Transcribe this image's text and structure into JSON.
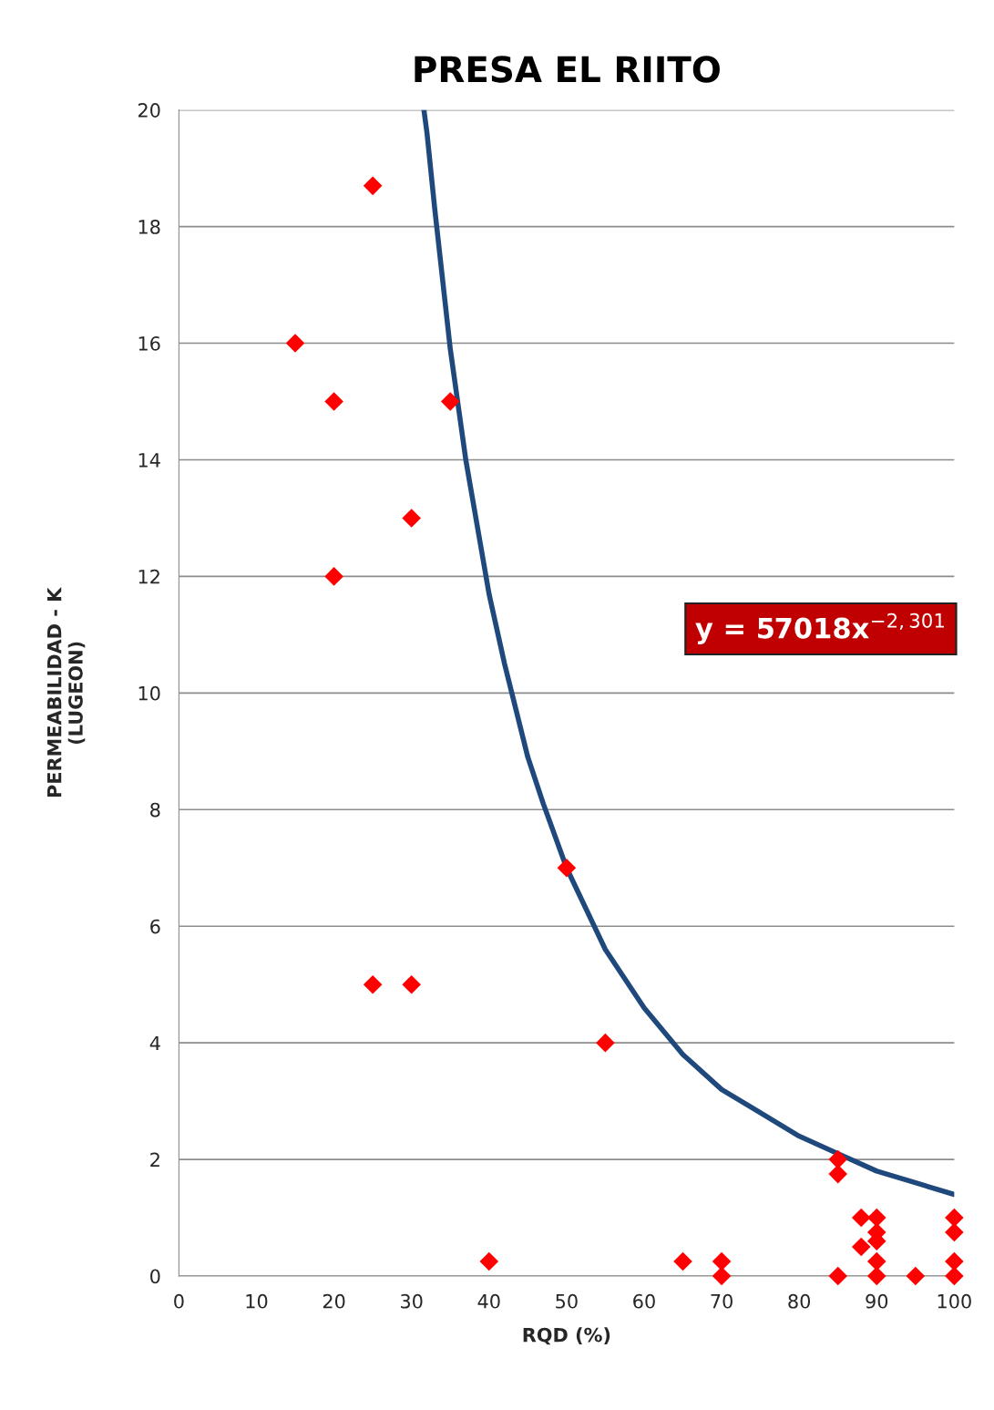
{
  "chart_data": {
    "type": "scatter",
    "title": "PRESA EL RIITO",
    "xlabel": "RQD (%)",
    "ylabel": "PERMEABILIDAD - K\n(LUGEON)",
    "series": [
      {
        "color": "#ff0000",
        "marker": "diamond",
        "x": [
          25,
          15,
          20,
          35,
          30,
          20,
          25,
          30,
          50,
          55,
          40,
          65,
          70,
          70,
          85,
          85,
          85,
          88,
          88,
          90,
          90,
          90,
          90,
          90,
          95,
          100,
          100,
          100,
          100
        ],
        "values": [
          18.7,
          16,
          15,
          15,
          13,
          12,
          5,
          5,
          7,
          4,
          0.25,
          0.25,
          0.25,
          0,
          2,
          1.75,
          0,
          1,
          0.5,
          1,
          0.75,
          0.6,
          0.25,
          0,
          0,
          1,
          0.75,
          0.25,
          0
        ]
      },
      {
        "type": "line",
        "color": "#1f497d",
        "marker": "none",
        "line_style": "solid",
        "x": [
          31.6,
          32,
          33,
          35,
          37,
          40,
          42,
          45,
          47,
          50,
          55,
          60,
          65,
          70,
          75,
          80,
          85,
          90,
          95,
          100
        ],
        "values": [
          20,
          19.6,
          18.3,
          15.9,
          14.0,
          11.7,
          10.5,
          8.9,
          8.1,
          7.0,
          5.6,
          4.6,
          3.8,
          3.2,
          2.8,
          2.4,
          2.1,
          1.8,
          1.6,
          1.4
        ]
      }
    ],
    "annotations": [
      "y = 57018x$^{−2,301}$"
    ],
    "xlim": [
      0,
      100
    ],
    "xticks": [
      0,
      10,
      20,
      30,
      40,
      50,
      60,
      70,
      80,
      90,
      100
    ],
    "ylim": [
      0,
      20
    ],
    "yticks": [
      0,
      2,
      4,
      6,
      8,
      10,
      12,
      14,
      16,
      18,
      20
    ],
    "grid": "y",
    "legend": false
  }
}
